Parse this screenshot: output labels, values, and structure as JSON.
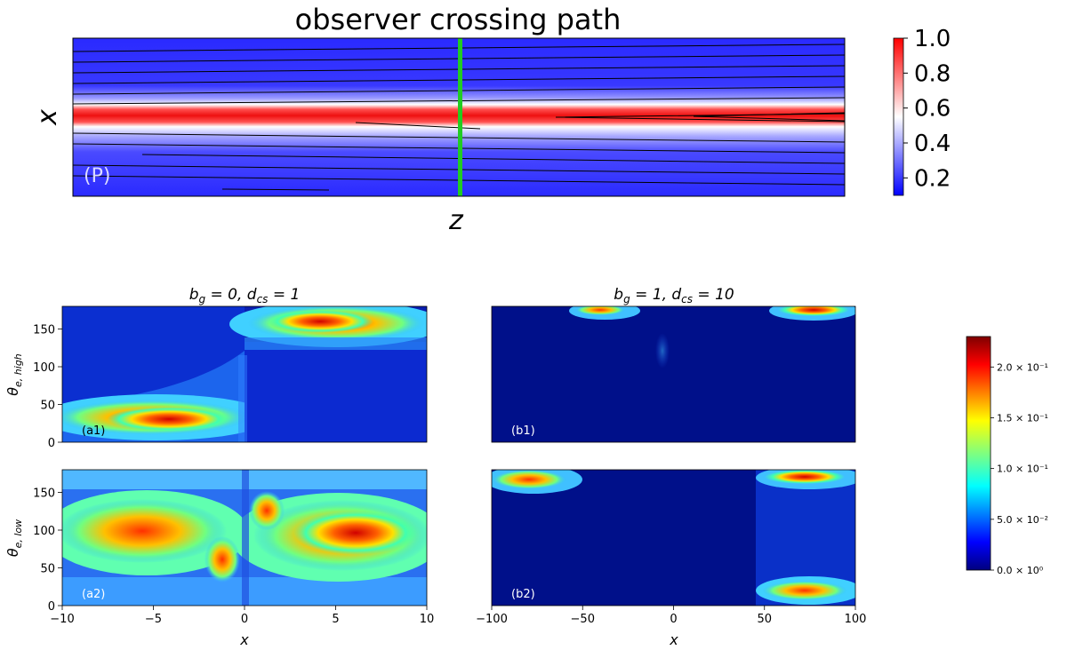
{
  "chart_data": [
    {
      "type": "heatmap",
      "panel": "P",
      "title": "observer crossing path",
      "xlabel": "z",
      "ylabel": "x",
      "panel_label": "(P)",
      "colormap": "bwr",
      "colorbar": {
        "ticks": [
          "0.2",
          "0.4",
          "0.6",
          "0.8",
          "1.0"
        ],
        "range": [
          0.1,
          1.0
        ]
      },
      "observer_line_color": "#22cc22",
      "grid": false
    },
    {
      "type": "heatmap",
      "panel": "a1",
      "title": "b_g = 0, d_cs = 1",
      "ylabel": "θ_{e,high}",
      "panel_label": "(a1)",
      "xlim": [
        -10,
        10
      ],
      "ylim": [
        0,
        180
      ],
      "yticks": [
        "0",
        "50",
        "100",
        "150"
      ],
      "colormap": "jet",
      "grid": false
    },
    {
      "type": "heatmap",
      "panel": "a2",
      "xlabel": "x",
      "ylabel": "θ_{e,low}",
      "panel_label": "(a2)",
      "xlim": [
        -10,
        10
      ],
      "ylim": [
        0,
        180
      ],
      "xticks": [
        "−10",
        "−5",
        "0",
        "5",
        "10"
      ],
      "yticks": [
        "0",
        "50",
        "100",
        "150"
      ],
      "colormap": "jet",
      "grid": false
    },
    {
      "type": "heatmap",
      "panel": "b1",
      "title": "b_g = 1, d_cs = 10",
      "panel_label": "(b1)",
      "xlim": [
        -100,
        100
      ],
      "ylim": [
        0,
        180
      ],
      "colormap": "jet",
      "grid": false
    },
    {
      "type": "heatmap",
      "panel": "b2",
      "xlabel": "x",
      "panel_label": "(b2)",
      "xlim": [
        -100,
        100
      ],
      "ylim": [
        0,
        180
      ],
      "xticks": [
        "−100",
        "−50",
        "0",
        "50",
        "100"
      ],
      "colormap": "jet",
      "grid": false,
      "colorbar": {
        "ticks": [
          "0.0 × 10⁰",
          "5.0 × 10⁻²",
          "1.0 × 10⁻¹",
          "1.5 × 10⁻¹",
          "2.0 × 10⁻¹"
        ],
        "tick_values": [
          0,
          0.05,
          0.1,
          0.15,
          0.2
        ],
        "range": [
          0,
          0.23
        ]
      }
    }
  ]
}
